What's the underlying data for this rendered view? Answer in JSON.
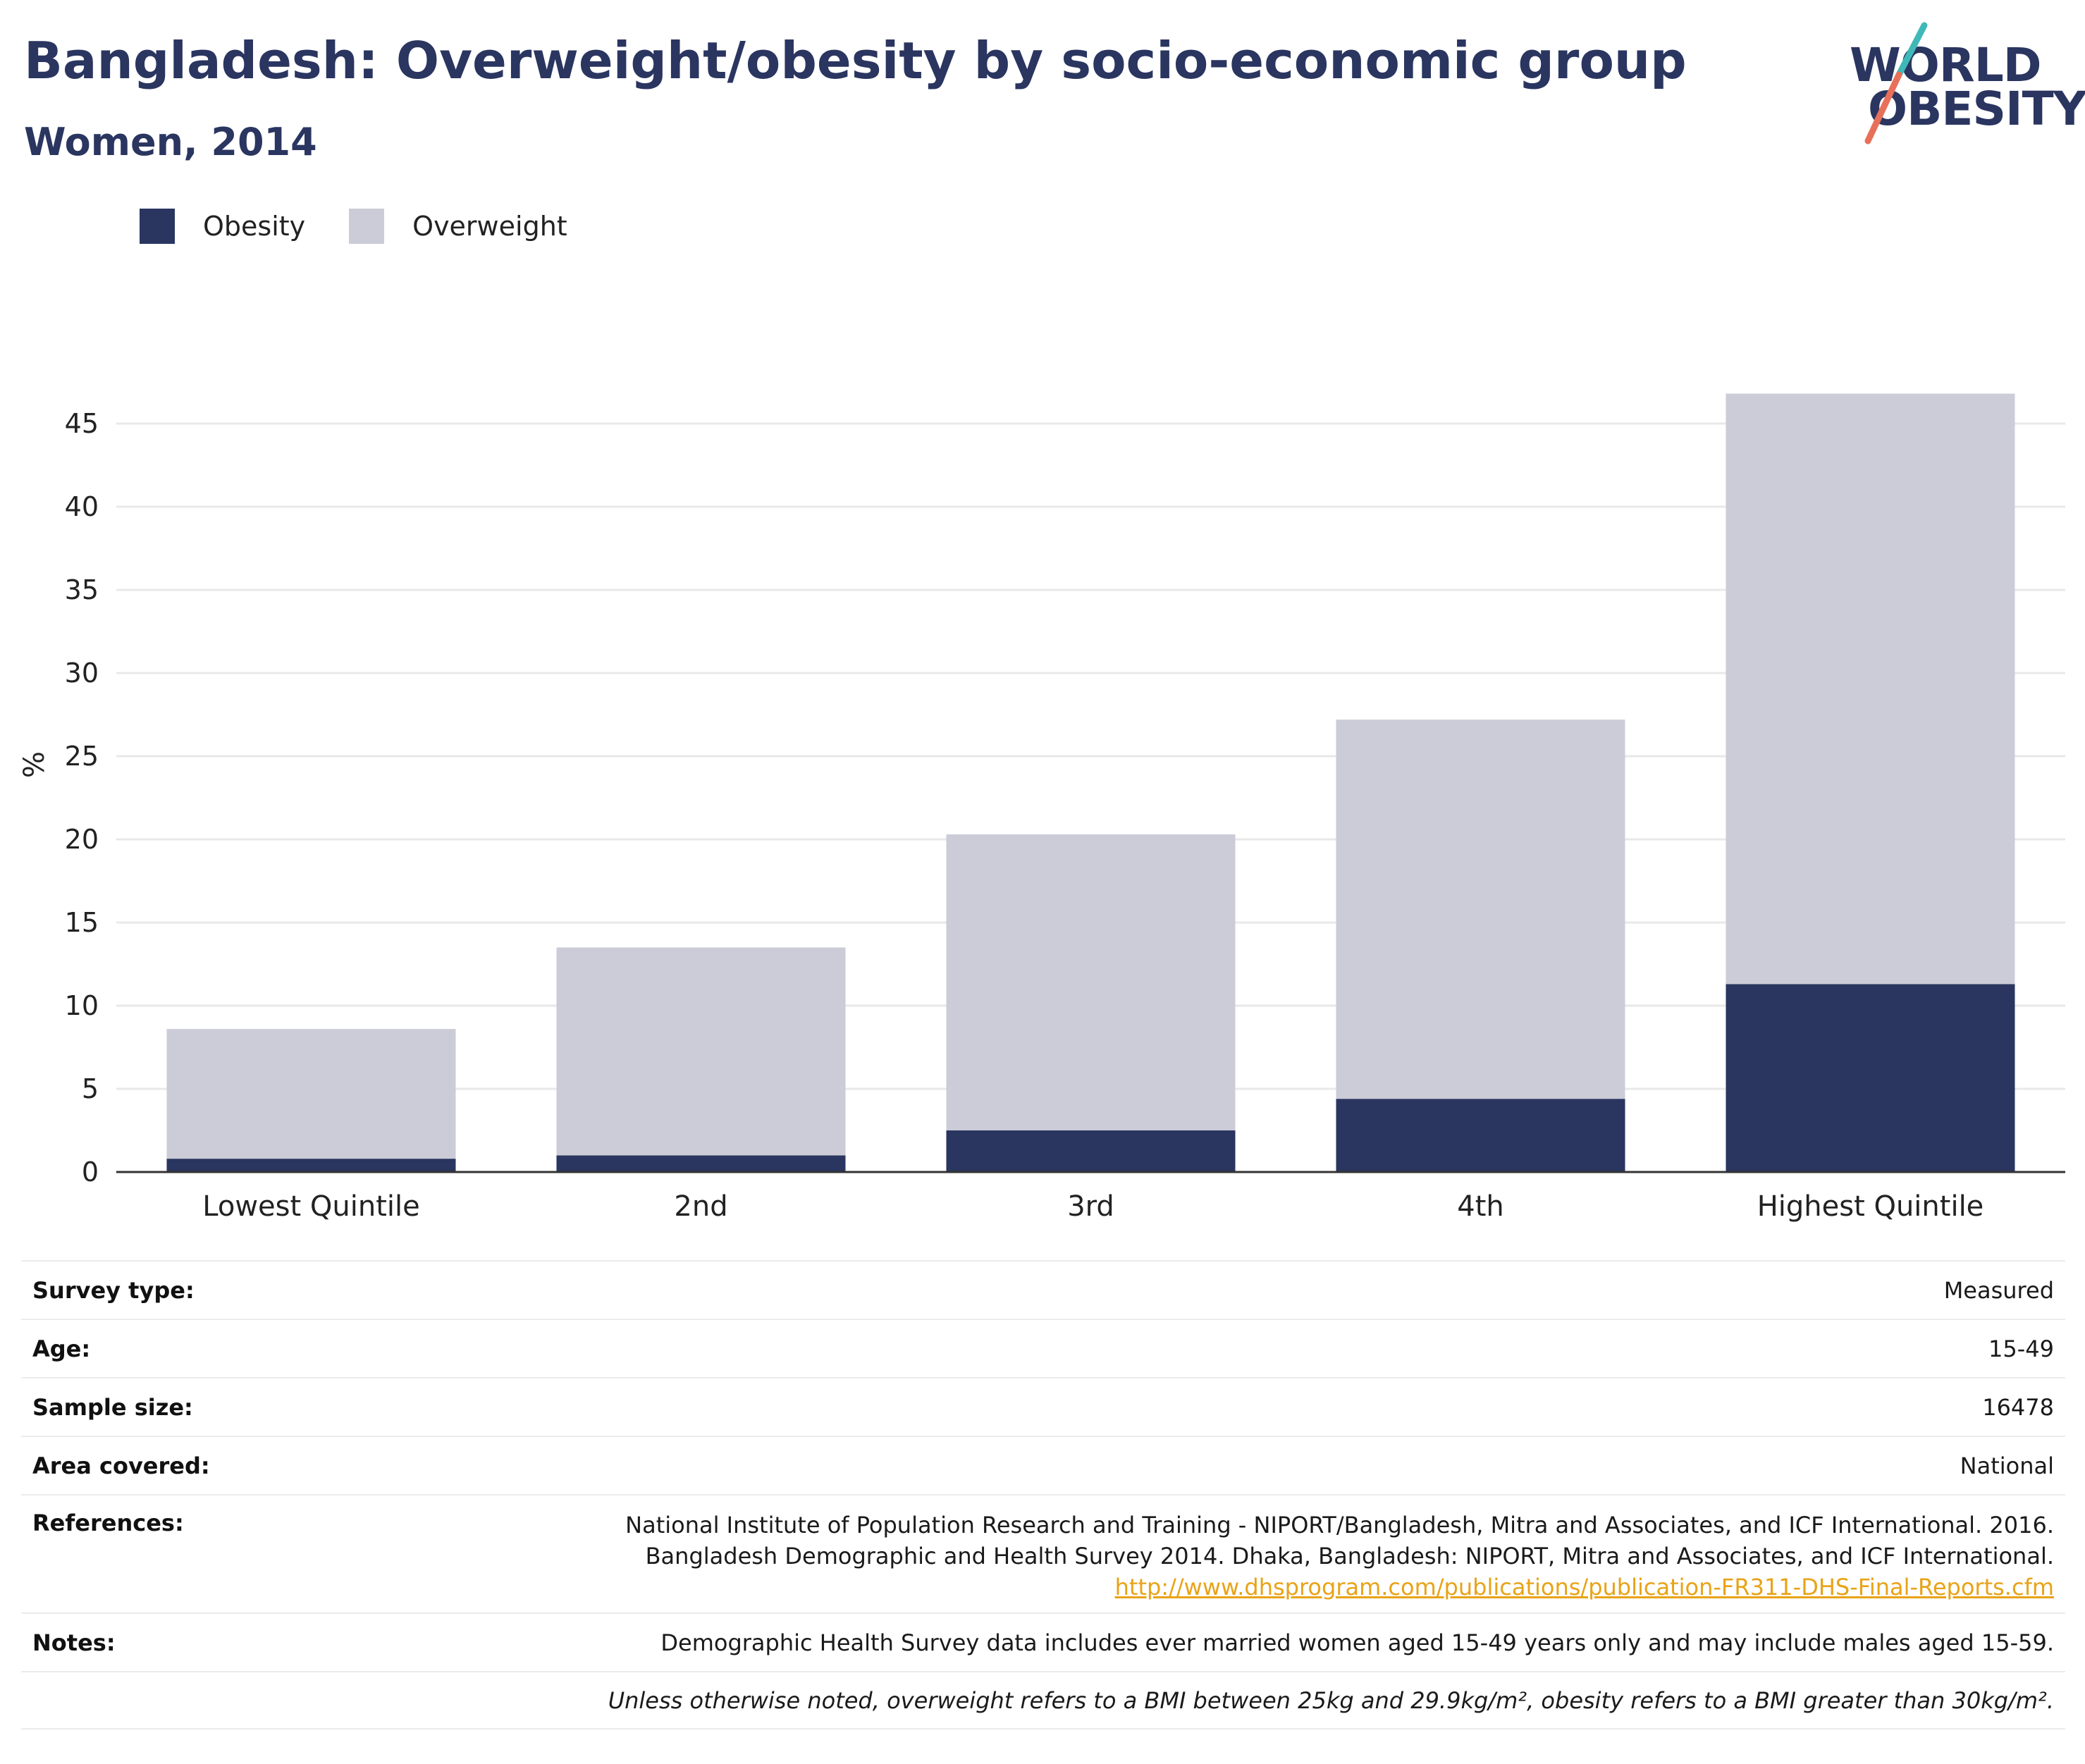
{
  "header": {
    "title": "Bangladesh: Overweight/obesity by socio-economic group",
    "subtitle": "Women, 2014"
  },
  "logo": {
    "line1": "WORLD",
    "line2": "OBESITY"
  },
  "colors": {
    "obesity": "#2a3560",
    "overweight": "#cbccd7",
    "grid": "#e8e8e8",
    "axis": "#333333",
    "logo_teal": "#3fb8b8",
    "logo_coral": "#e8705a",
    "link": "#e8a317"
  },
  "chart_data": {
    "type": "bar",
    "stacked": true,
    "categories": [
      "Lowest Quintile",
      "2nd",
      "3rd",
      "4th",
      "Highest Quintile"
    ],
    "series": [
      {
        "name": "Obesity",
        "values": [
          0.8,
          1.0,
          2.5,
          4.4,
          11.3
        ]
      },
      {
        "name": "Overweight",
        "values": [
          7.8,
          12.5,
          17.8,
          22.8,
          35.5
        ]
      }
    ],
    "ylabel": "%",
    "xlabel": "",
    "ylim": [
      0,
      47
    ],
    "yticks": [
      0,
      5,
      10,
      15,
      20,
      25,
      30,
      35,
      40,
      45
    ],
    "grid": true,
    "legend_position": "top-left"
  },
  "meta": {
    "survey_type": {
      "label": "Survey type:",
      "value": "Measured"
    },
    "age": {
      "label": "Age:",
      "value": "15-49"
    },
    "sample_size": {
      "label": "Sample size:",
      "value": "16478"
    },
    "area_covered": {
      "label": "Area covered:",
      "value": "National"
    },
    "references": {
      "label": "References:",
      "line1": "National Institute of Population Research and Training - NIPORT/Bangladesh, Mitra and Associates, and ICF International. 2016.",
      "line2": "Bangladesh Demographic and Health Survey 2014. Dhaka, Bangladesh: NIPORT, Mitra and Associates, and ICF International.",
      "link": "http://www.dhsprogram.com/publications/publication-FR311-DHS-Final-Reports.cfm"
    },
    "notes": {
      "label": "Notes:",
      "value": "Demographic Health Survey data includes ever married women aged 15-49 years only and may include males aged 15-59."
    },
    "footnote": "Unless otherwise noted, overweight refers to a BMI between 25kg and 29.9kg/m², obesity refers to a BMI greater than 30kg/m²."
  }
}
